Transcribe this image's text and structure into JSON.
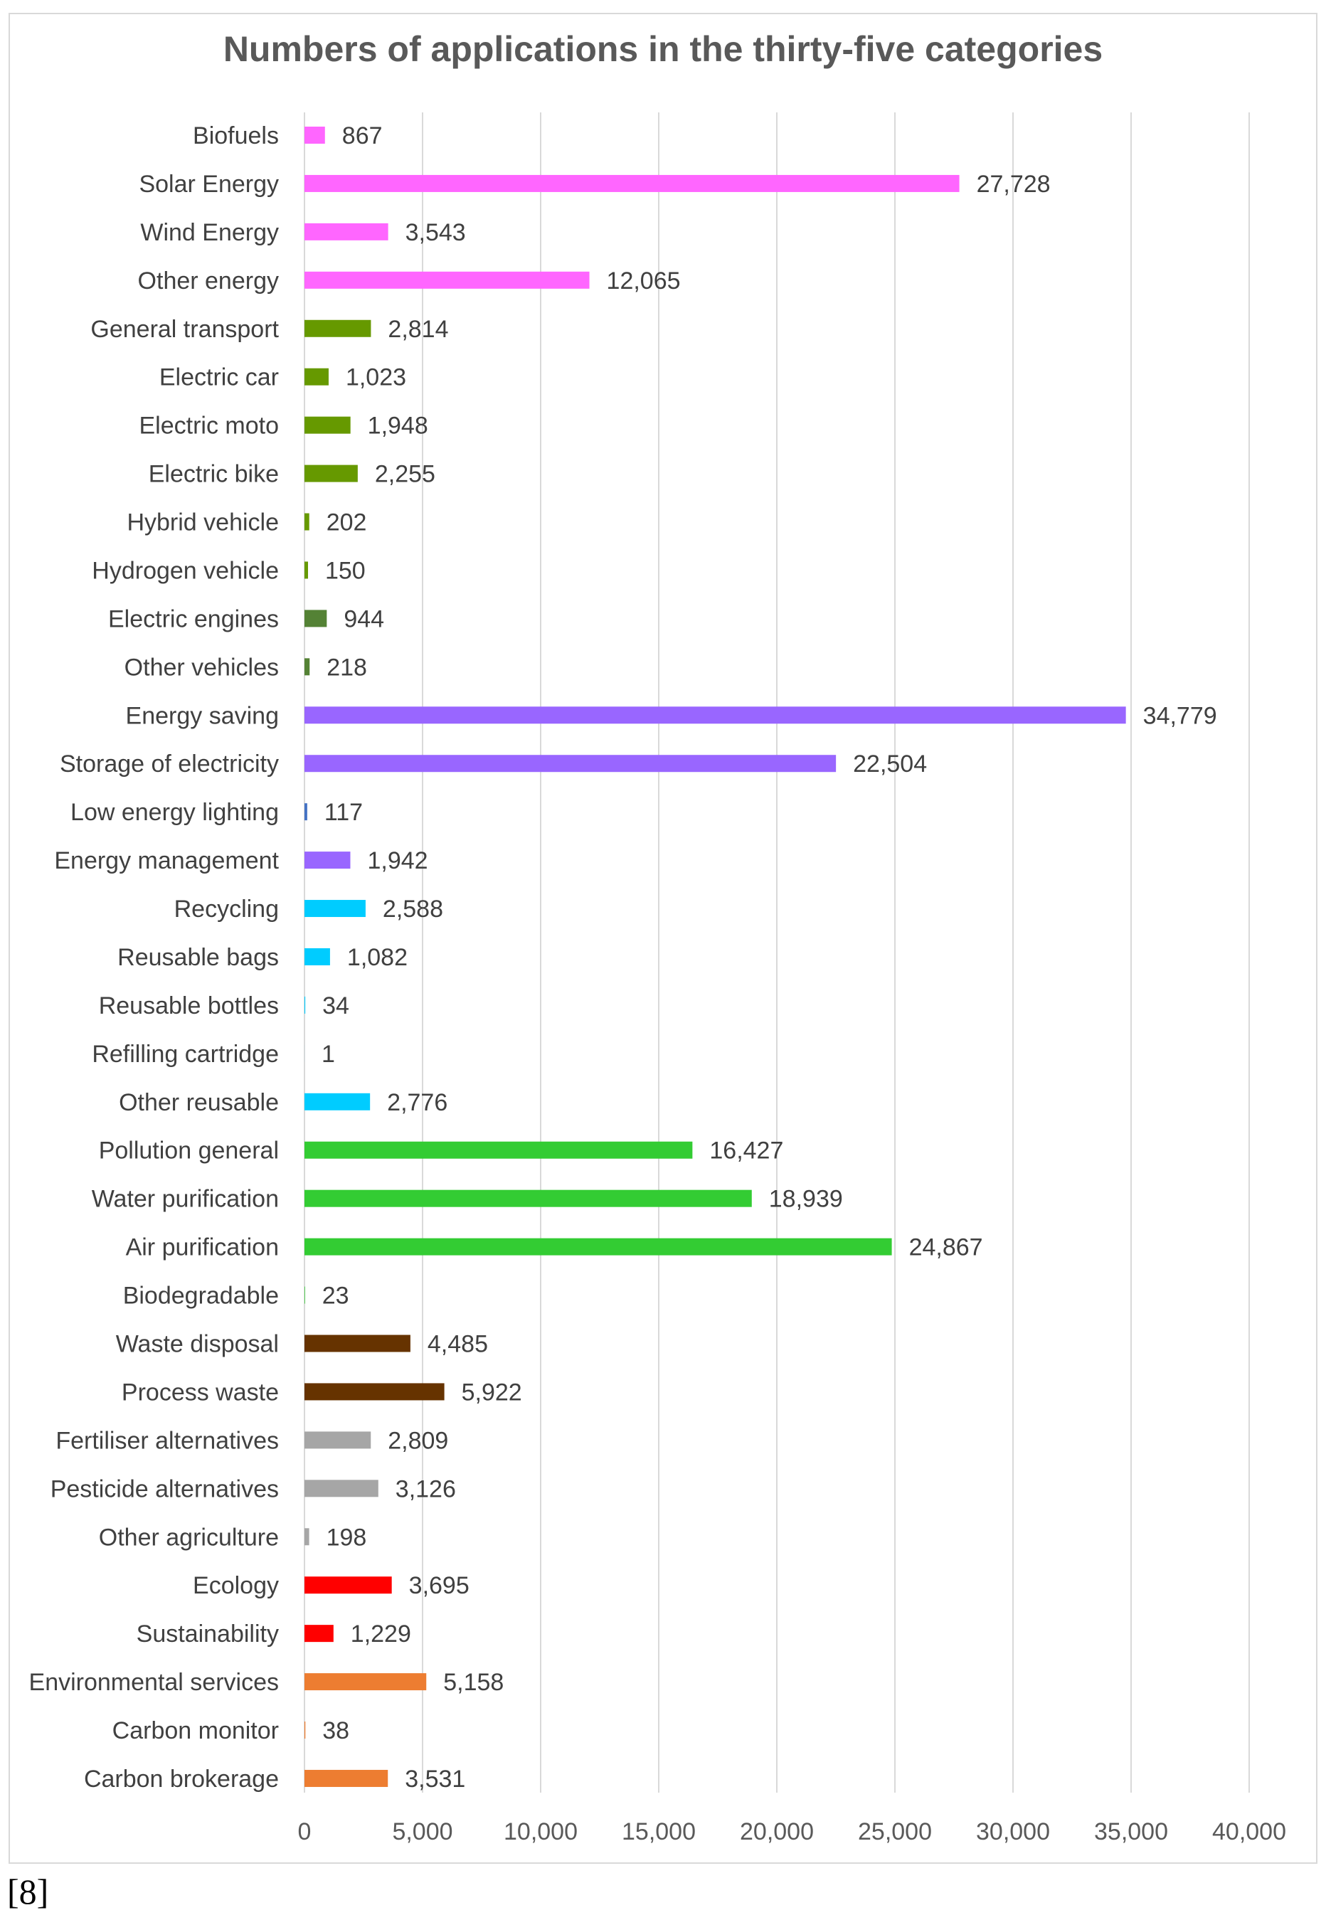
{
  "footnote": "[8]",
  "chart_data": {
    "type": "bar",
    "orientation": "horizontal",
    "title": "Numbers of applications in the thirty-five categories",
    "xlabel": "",
    "ylabel": "",
    "xlim": [
      0,
      40000
    ],
    "xticks": [
      0,
      5000,
      10000,
      15000,
      20000,
      25000,
      30000,
      35000,
      40000
    ],
    "xtick_labels": [
      "0",
      "5,000",
      "10,000",
      "15,000",
      "20,000",
      "25,000",
      "30,000",
      "35,000",
      "40,000"
    ],
    "grid": "vertical",
    "legend": "none",
    "bars": [
      {
        "category": "Biofuels",
        "value": 867,
        "label": "867",
        "color": "#ff66ff"
      },
      {
        "category": "Solar Energy",
        "value": 27728,
        "label": "27,728",
        "color": "#ff66ff"
      },
      {
        "category": "Wind Energy",
        "value": 3543,
        "label": "3,543",
        "color": "#ff66ff"
      },
      {
        "category": "Other energy",
        "value": 12065,
        "label": "12,065",
        "color": "#ff66ff"
      },
      {
        "category": "General transport",
        "value": 2814,
        "label": "2,814",
        "color": "#669900"
      },
      {
        "category": "Electric car",
        "value": 1023,
        "label": "1,023",
        "color": "#669900"
      },
      {
        "category": "Electric moto",
        "value": 1948,
        "label": "1,948",
        "color": "#669900"
      },
      {
        "category": "Electric bike",
        "value": 2255,
        "label": "2,255",
        "color": "#669900"
      },
      {
        "category": "Hybrid vehicle",
        "value": 202,
        "label": "202",
        "color": "#669900"
      },
      {
        "category": "Hydrogen vehicle",
        "value": 150,
        "label": "150",
        "color": "#669900"
      },
      {
        "category": "Electric engines",
        "value": 944,
        "label": "944",
        "color": "#548235"
      },
      {
        "category": "Other vehicles",
        "value": 218,
        "label": "218",
        "color": "#548235"
      },
      {
        "category": "Energy saving",
        "value": 34779,
        "label": "34,779",
        "color": "#9966ff"
      },
      {
        "category": "Storage of electricity",
        "value": 22504,
        "label": "22,504",
        "color": "#9966ff"
      },
      {
        "category": "Low energy lighting",
        "value": 117,
        "label": "117",
        "color": "#4472c4"
      },
      {
        "category": "Energy management",
        "value": 1942,
        "label": "1,942",
        "color": "#9966ff"
      },
      {
        "category": "Recycling",
        "value": 2588,
        "label": "2,588",
        "color": "#00ccff"
      },
      {
        "category": "Reusable bags",
        "value": 1082,
        "label": "1,082",
        "color": "#00ccff"
      },
      {
        "category": "Reusable bottles",
        "value": 34,
        "label": "34",
        "color": "#00ccff"
      },
      {
        "category": "Refilling cartridge",
        "value": 1,
        "label": "1",
        "color": "#00ccff"
      },
      {
        "category": "Other reusable",
        "value": 2776,
        "label": "2,776",
        "color": "#00ccff"
      },
      {
        "category": "Pollution general",
        "value": 16427,
        "label": "16,427",
        "color": "#33cc33"
      },
      {
        "category": "Water purification",
        "value": 18939,
        "label": "18,939",
        "color": "#33cc33"
      },
      {
        "category": "Air purification",
        "value": 24867,
        "label": "24,867",
        "color": "#33cc33"
      },
      {
        "category": "Biodegradable",
        "value": 23,
        "label": "23",
        "color": "#33cc33"
      },
      {
        "category": "Waste disposal",
        "value": 4485,
        "label": "4,485",
        "color": "#663300"
      },
      {
        "category": "Process waste",
        "value": 5922,
        "label": "5,922",
        "color": "#663300"
      },
      {
        "category": "Fertiliser alternatives",
        "value": 2809,
        "label": "2,809",
        "color": "#a6a6a6"
      },
      {
        "category": "Pesticide alternatives",
        "value": 3126,
        "label": "3,126",
        "color": "#a6a6a6"
      },
      {
        "category": "Other agriculture",
        "value": 198,
        "label": "198",
        "color": "#a6a6a6"
      },
      {
        "category": "Ecology",
        "value": 3695,
        "label": "3,695",
        "color": "#ff0000"
      },
      {
        "category": "Sustainability",
        "value": 1229,
        "label": "1,229",
        "color": "#ff0000"
      },
      {
        "category": "Environmental services",
        "value": 5158,
        "label": "5,158",
        "color": "#ed7d31"
      },
      {
        "category": "Carbon monitor",
        "value": 38,
        "label": "38",
        "color": "#ed7d31"
      },
      {
        "category": "Carbon brokerage",
        "value": 3531,
        "label": "3,531",
        "color": "#ed7d31"
      }
    ],
    "colors": {
      "title": "#595959",
      "category_labels": "#404040",
      "value_labels": "#404040",
      "tick_labels": "#595959",
      "gridlines": "#d9d9d9",
      "frame": "#d9d9d9"
    }
  }
}
